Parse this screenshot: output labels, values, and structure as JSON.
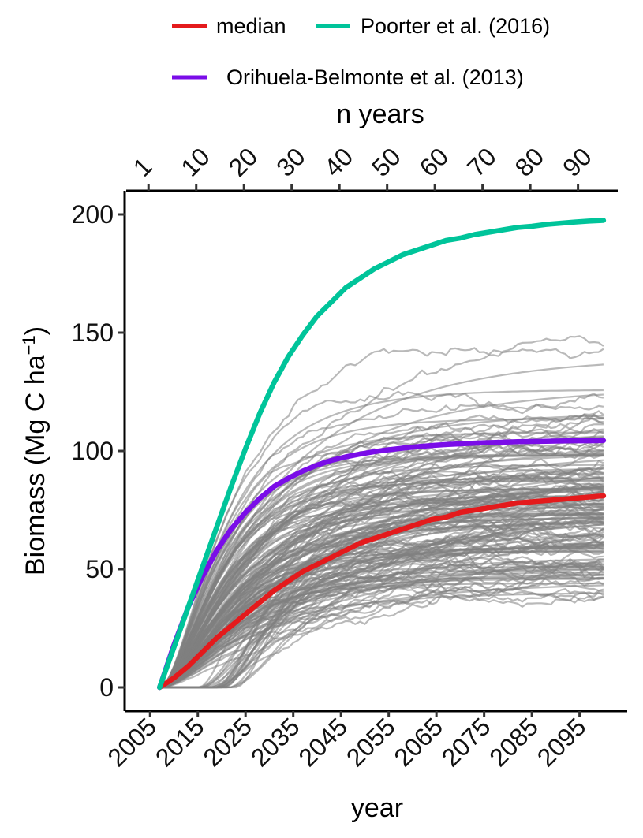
{
  "chart_data": {
    "type": "line",
    "xlabel": "year",
    "ylabel": "Biomass (Mg C ha",
    "ylabel_unit_exponent": "−1",
    "ylabel_close": ")",
    "top_axis_title": "n years",
    "xlim": [
      2000,
      2103
    ],
    "ylim": [
      -10,
      210
    ],
    "x_ticks": [
      2005,
      2015,
      2025,
      2035,
      2045,
      2055,
      2065,
      2075,
      2085,
      2095
    ],
    "x_tick_labels": [
      "2005",
      "2015",
      "2025",
      "2035",
      "2045",
      "2055",
      "2065",
      "2075",
      "2085",
      "2095"
    ],
    "y_ticks": [
      0,
      50,
      100,
      150,
      200
    ],
    "y_tick_labels": [
      "0",
      "50",
      "100",
      "150",
      "200"
    ],
    "top_ticks_year": [
      2005,
      2015,
      2025,
      2035,
      2045,
      2055,
      2065,
      2075,
      2085,
      2095
    ],
    "top_tick_labels": [
      "1",
      "10",
      "20",
      "30",
      "40",
      "50",
      "60",
      "70",
      "80",
      "90"
    ],
    "legend_position": "top",
    "series": [
      {
        "name": "median",
        "color": "#e41a1c",
        "x": [
          2007,
          2010,
          2013,
          2016,
          2019,
          2022,
          2025,
          2028,
          2031,
          2034,
          2037,
          2040,
          2043,
          2046,
          2049,
          2052,
          2055,
          2058,
          2061,
          2064,
          2067,
          2070,
          2073,
          2076,
          2079,
          2082,
          2085,
          2088,
          2091,
          2094,
          2097,
          2100
        ],
        "y": [
          0,
          4,
          9,
          15,
          21,
          26,
          31,
          36,
          41,
          45,
          49,
          52,
          55,
          58,
          61,
          63,
          65,
          67,
          69,
          71,
          72,
          74,
          75,
          76,
          77,
          78,
          78.5,
          79,
          79.5,
          80,
          80.5,
          81
        ]
      },
      {
        "name": "Poorter et al. (2016)",
        "color": "#00c49a",
        "x": [
          2007,
          2010,
          2013,
          2016,
          2019,
          2022,
          2025,
          2028,
          2031,
          2034,
          2037,
          2040,
          2043,
          2046,
          2049,
          2052,
          2055,
          2058,
          2061,
          2064,
          2067,
          2070,
          2073,
          2076,
          2079,
          2082,
          2085,
          2088,
          2091,
          2094,
          2097,
          2100
        ],
        "y": [
          0,
          17,
          34,
          51,
          68,
          85,
          101,
          116,
          129,
          140,
          149,
          157,
          163,
          169,
          173,
          177,
          180,
          183,
          185,
          187,
          189,
          190,
          191.5,
          192.5,
          193.5,
          194.5,
          195,
          195.8,
          196.3,
          196.8,
          197.2,
          197.5
        ]
      },
      {
        "name": "Orihuela-Belmonte et al. (2013)",
        "color": "#7a0de8",
        "x": [
          2007,
          2010,
          2013,
          2016,
          2019,
          2022,
          2025,
          2028,
          2031,
          2034,
          2037,
          2040,
          2043,
          2046,
          2049,
          2052,
          2055,
          2058,
          2061,
          2064,
          2067,
          2070,
          2073,
          2076,
          2079,
          2082,
          2085,
          2088,
          2091,
          2094,
          2097,
          2100
        ],
        "y": [
          0,
          18,
          34,
          47,
          58,
          67,
          74,
          80,
          85,
          88.5,
          91.5,
          94,
          96,
          97.5,
          98.7,
          99.7,
          100.5,
          101.2,
          101.8,
          102.3,
          102.7,
          103,
          103.3,
          103.5,
          103.7,
          103.9,
          104,
          104.1,
          104.2,
          104.3,
          104.3,
          104.4
        ]
      }
    ],
    "ensemble": {
      "color": "#7f7f7f",
      "count": 180,
      "x_start": 2007,
      "x_end": 2100,
      "plateau_range": [
        40,
        147
      ]
    }
  }
}
